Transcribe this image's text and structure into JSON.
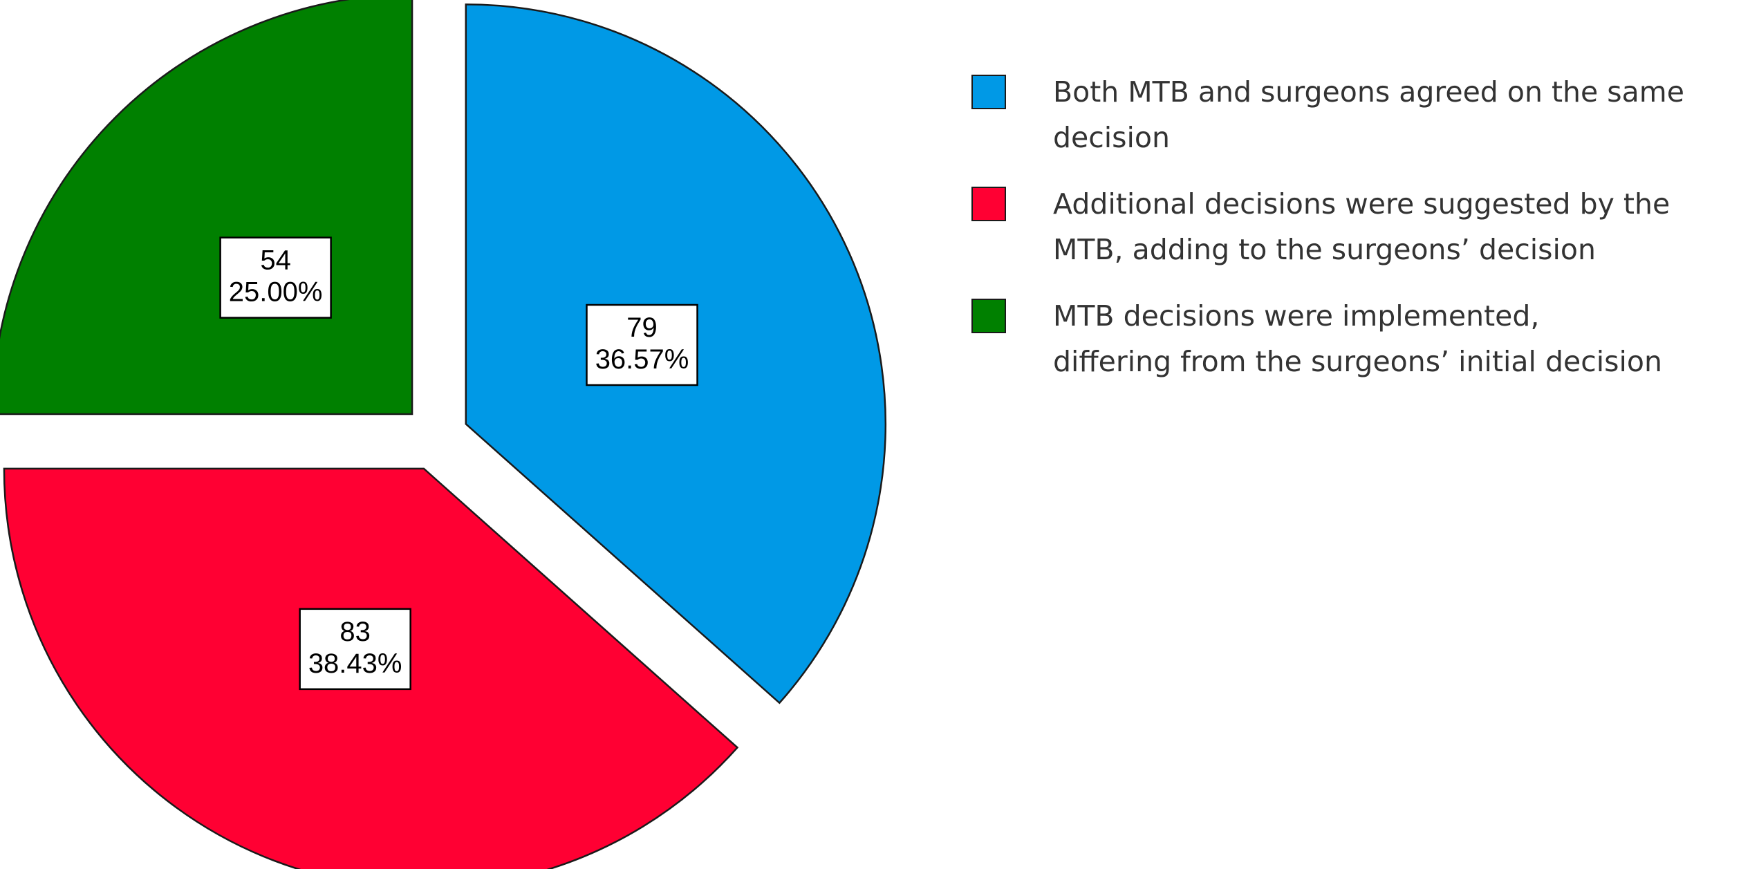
{
  "chart_data": {
    "type": "pie",
    "slices": [
      {
        "count": 79,
        "percent": "36.57%",
        "value": 36.57,
        "color": "#0099E6",
        "legend": "Both MTB and surgeons agreed on the same\ndecision"
      },
      {
        "count": 83,
        "percent": "38.43%",
        "value": 38.43,
        "color": "#FF0033",
        "legend": "Additional decisions were suggested by the\nMTB, adding to the surgeons’ decision"
      },
      {
        "count": 54,
        "percent": "25.00%",
        "value": 25.0,
        "color": "#008000",
        "legend": "MTB decisions were implemented,\ndiffering from the surgeons’ initial decision"
      }
    ],
    "legend_position": "right",
    "exploded": true,
    "start_angle_deg": 0,
    "direction": "clockwise"
  }
}
